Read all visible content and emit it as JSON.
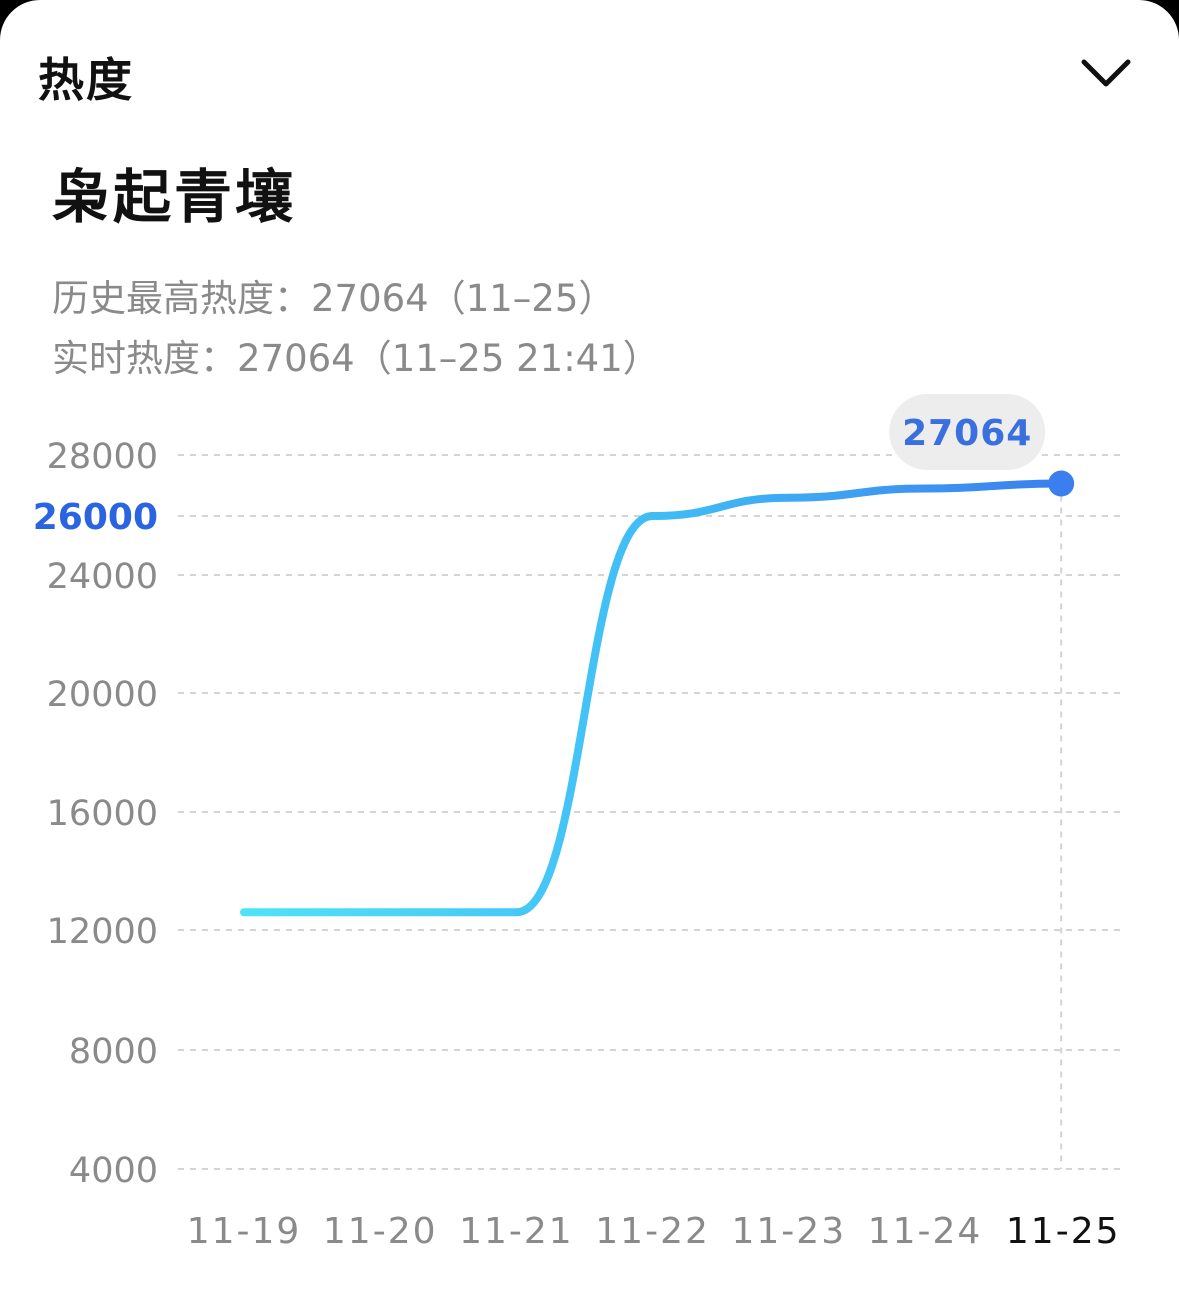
{
  "header": {
    "title": "热度",
    "collapse_icon": "chevron-down-icon"
  },
  "topic": {
    "title": "枭起青壤"
  },
  "stats": {
    "history_peak": "历史最高热度：27064（11–25）",
    "realtime": "实时热度：27064（11–25 21:41）"
  },
  "colors": {
    "line_start": "#4FE3F7",
    "line_mid": "#3FB8F5",
    "line_end": "#3B7FEE",
    "highlight_tick": "#2A64E0",
    "tooltip_text": "#3A6FE0",
    "tooltip_bg": "#EDEDED",
    "grid": "#D4D4D4",
    "axis_text": "#8A8A8A"
  },
  "chart_data": {
    "type": "line",
    "x": [
      "11-19",
      "11-20",
      "11-21",
      "11-22",
      "11-23",
      "11-24",
      "11-25"
    ],
    "series": [
      {
        "values": [
          12600,
          12600,
          12600,
          26000,
          26600,
          26900,
          27064
        ]
      }
    ],
    "yticks": [
      "4000",
      "8000",
      "12000",
      "16000",
      "20000",
      "24000",
      "26000",
      "28000"
    ],
    "ytick_values": [
      4000,
      8000,
      12000,
      16000,
      20000,
      24000,
      26000,
      28000
    ],
    "highlighted_ytick": "26000",
    "selected_x": "11-25",
    "tooltip_value": "27064",
    "grid": true
  }
}
